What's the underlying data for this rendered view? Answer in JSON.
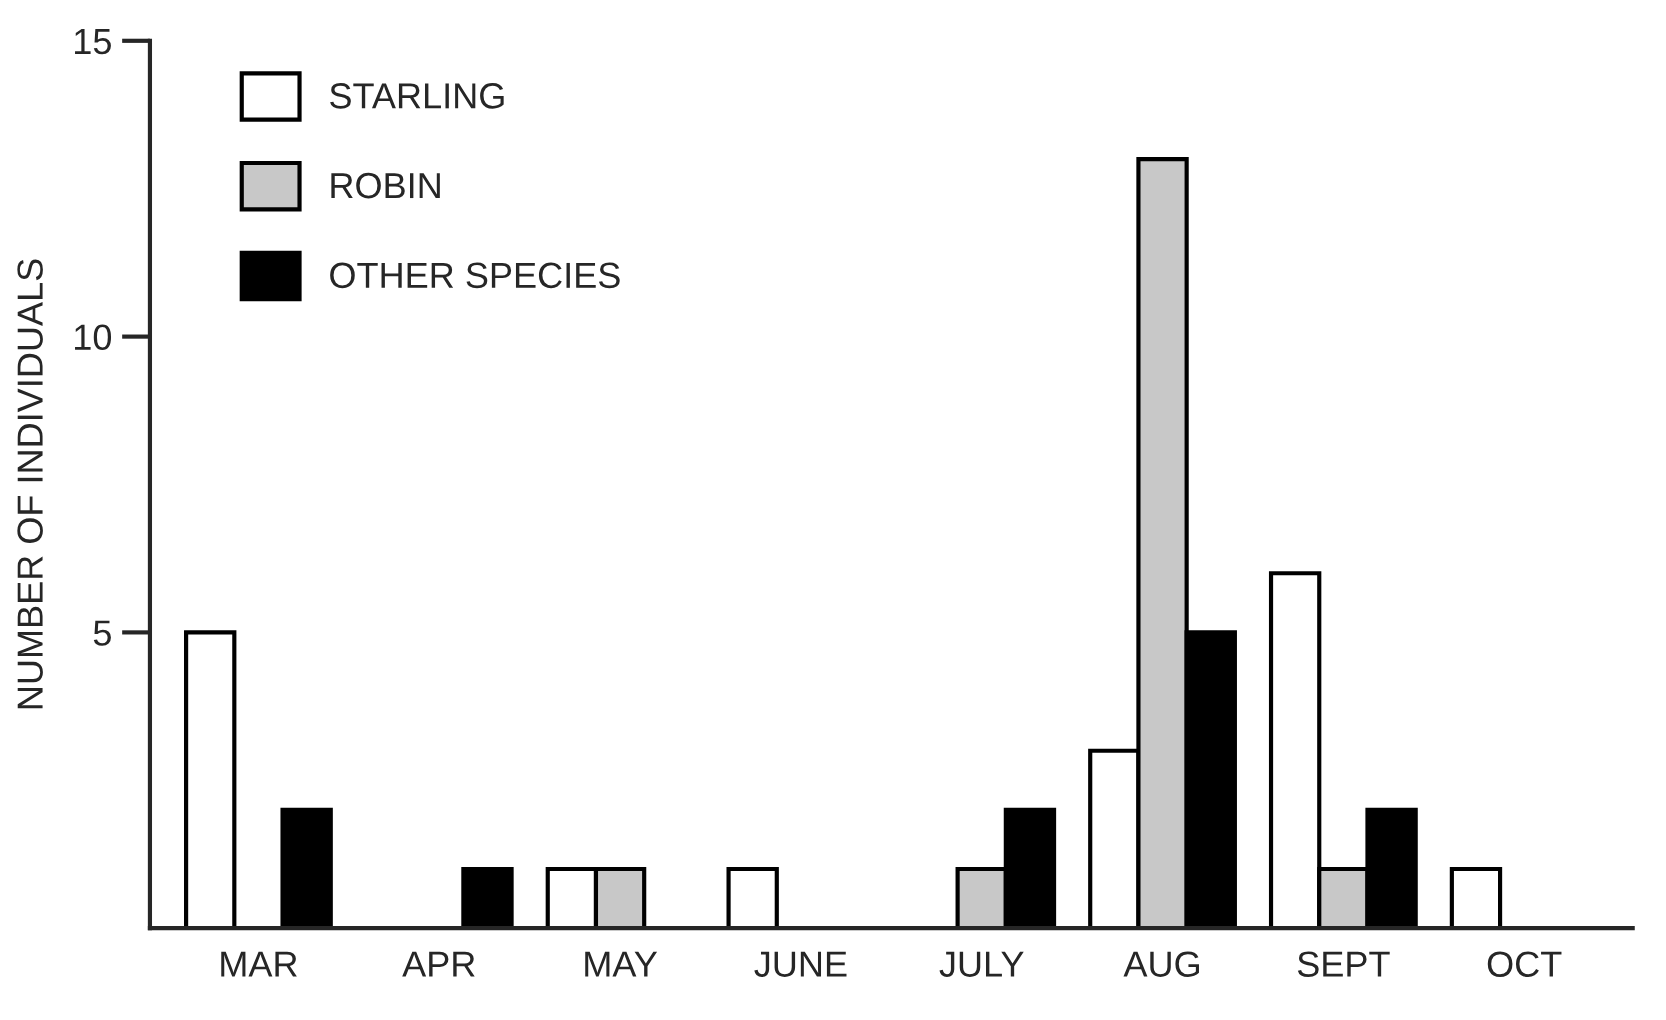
{
  "chart_data": {
    "type": "bar",
    "ylabel": "NUMBER OF INDIVIDUALS",
    "categories": [
      "MAR",
      "APR",
      "MAY",
      "JUNE",
      "JULY",
      "AUG",
      "SEPT",
      "OCT"
    ],
    "series": [
      {
        "name": "STARLING",
        "color": "#ffffff",
        "values": [
          5,
          null,
          1,
          1,
          null,
          3,
          6,
          1
        ]
      },
      {
        "name": "ROBIN",
        "color": "#c8c8c8",
        "values": [
          null,
          null,
          1,
          null,
          1,
          13,
          1,
          null
        ]
      },
      {
        "name": "OTHER SPECIES",
        "color": "#000000",
        "values": [
          2,
          1,
          null,
          null,
          2,
          5,
          2,
          null
        ]
      }
    ],
    "ylim": [
      0,
      15
    ],
    "yticks": [
      5,
      10,
      15
    ],
    "grid": false,
    "legend": "top left"
  }
}
